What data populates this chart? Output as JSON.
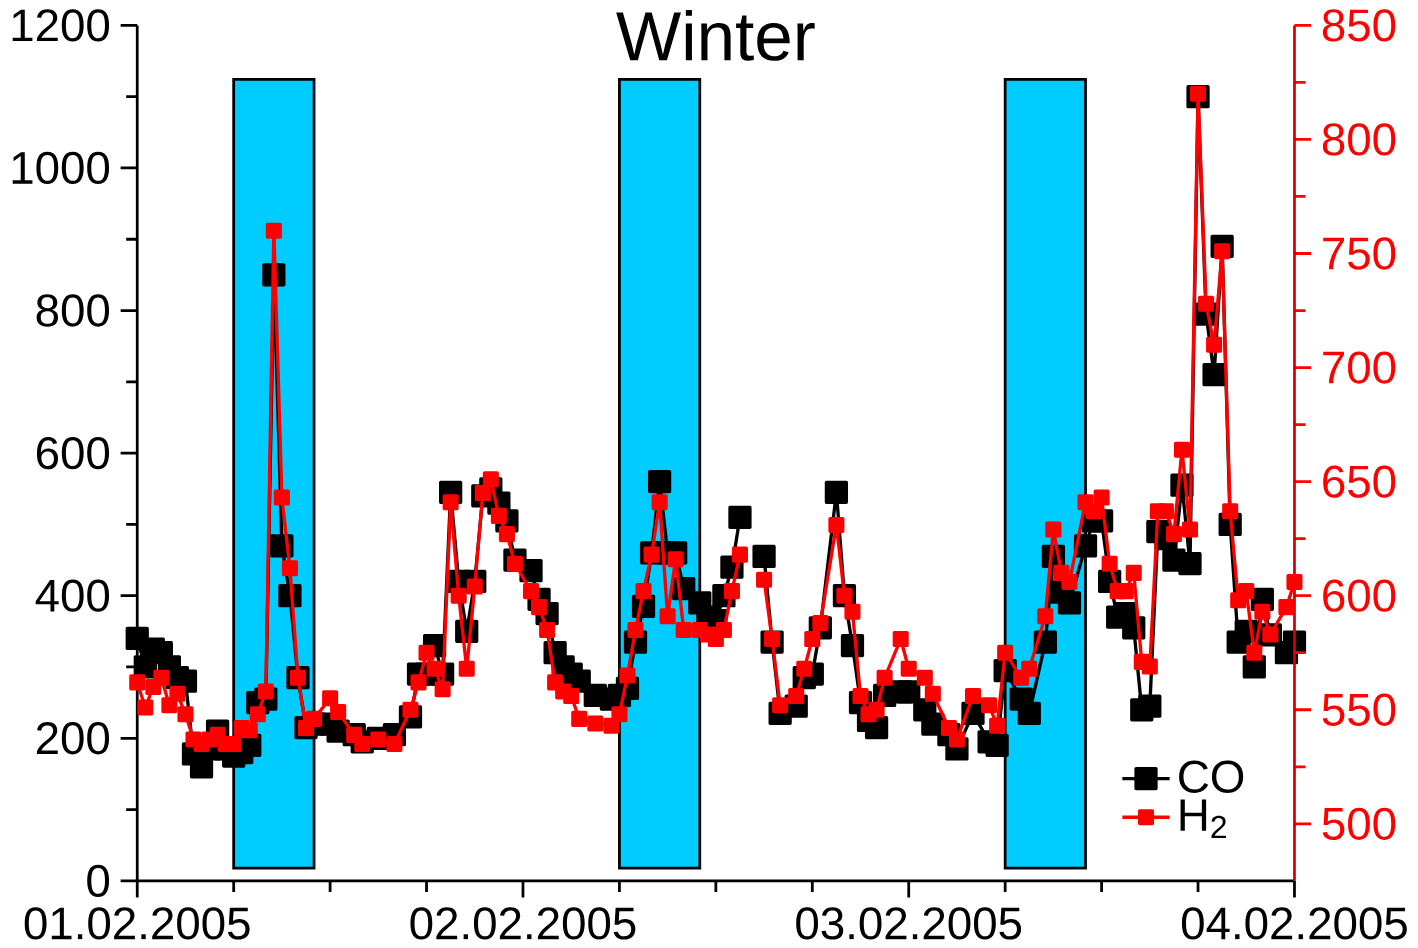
{
  "chart_data": {
    "type": "line",
    "title": "Winter",
    "x": [
      "2005-02-01T00:00",
      "2005-02-01T00:30",
      "2005-02-01T01:00",
      "2005-02-01T01:30",
      "2005-02-01T02:00",
      "2005-02-01T02:30",
      "2005-02-01T03:00",
      "2005-02-01T03:30",
      "2005-02-01T04:00",
      "2005-02-01T04:30",
      "2005-02-01T05:00",
      "2005-02-01T05:30",
      "2005-02-01T06:00",
      "2005-02-01T06:30",
      "2005-02-01T07:00",
      "2005-02-01T07:30",
      "2005-02-01T08:00",
      "2005-02-01T08:30",
      "2005-02-01T09:00",
      "2005-02-01T09:30",
      "2005-02-01T10:00",
      "2005-02-01T10:30",
      "2005-02-01T11:00",
      "2005-02-01T12:00",
      "2005-02-01T12:30",
      "2005-02-01T13:30",
      "2005-02-01T14:00",
      "2005-02-01T15:00",
      "2005-02-01T16:00",
      "2005-02-01T17:00",
      "2005-02-01T17:30",
      "2005-02-01T18:00",
      "2005-02-01T18:30",
      "2005-02-01T19:00",
      "2005-02-01T19:30",
      "2005-02-01T20:00",
      "2005-02-01T20:30",
      "2005-02-01T21:00",
      "2005-02-01T21:30",
      "2005-02-01T22:00",
      "2005-02-01T22:30",
      "2005-02-01T23:00",
      "2005-02-01T23:30",
      "2005-02-02T00:30",
      "2005-02-02T01:00",
      "2005-02-02T01:30",
      "2005-02-02T02:00",
      "2005-02-02T02:30",
      "2005-02-02T03:00",
      "2005-02-02T03:30",
      "2005-02-02T04:30",
      "2005-02-02T05:30",
      "2005-02-02T06:00",
      "2005-02-02T06:30",
      "2005-02-02T07:00",
      "2005-02-02T07:30",
      "2005-02-02T08:00",
      "2005-02-02T08:30",
      "2005-02-02T09:00",
      "2005-02-02T09:30",
      "2005-02-02T10:00",
      "2005-02-02T11:00",
      "2005-02-02T11:30",
      "2005-02-02T12:00",
      "2005-02-02T12:30",
      "2005-02-02T13:00",
      "2005-02-02T13:30",
      "2005-02-02T14:00",
      "2005-02-02T15:00",
      "2005-02-02T15:30",
      "2005-02-02T16:00",
      "2005-02-02T17:00",
      "2005-02-02T17:30",
      "2005-02-02T18:00",
      "2005-02-02T18:30",
      "2005-02-02T19:30",
      "2005-02-02T20:00",
      "2005-02-02T20:30",
      "2005-02-02T21:00",
      "2005-02-02T21:30",
      "2005-02-02T22:00",
      "2005-02-02T22:30",
      "2005-02-02T23:30",
      "2005-02-03T00:00",
      "2005-02-03T01:00",
      "2005-02-03T01:30",
      "2005-02-03T02:30",
      "2005-02-03T03:00",
      "2005-02-03T04:00",
      "2005-02-03T05:00",
      "2005-02-03T05:30",
      "2005-02-03T06:00",
      "2005-02-03T07:00",
      "2005-02-03T07:30",
      "2005-02-03T08:30",
      "2005-02-03T09:00",
      "2005-02-03T09:30",
      "2005-02-03T10:00",
      "2005-02-03T11:00",
      "2005-02-03T11:30",
      "2005-02-03T12:00",
      "2005-02-03T12:30",
      "2005-02-03T13:00",
      "2005-02-03T13:30",
      "2005-02-03T14:00",
      "2005-02-03T14:30",
      "2005-02-03T15:00",
      "2005-02-03T15:30",
      "2005-02-03T16:00",
      "2005-02-03T16:30",
      "2005-02-03T17:00",
      "2005-02-03T17:30",
      "2005-02-03T18:00",
      "2005-02-03T18:30",
      "2005-02-03T19:00",
      "2005-02-03T19:30",
      "2005-02-03T20:00",
      "2005-02-03T20:30",
      "2005-02-03T21:00",
      "2005-02-03T21:30",
      "2005-02-03T22:00",
      "2005-02-03T22:30",
      "2005-02-03T23:30",
      "2005-02-04T00:00"
    ],
    "series": [
      {
        "name": "CO",
        "color": "#000000",
        "values": [
          340,
          300,
          325,
          320,
          300,
          285,
          280,
          178,
          160,
          185,
          210,
          185,
          175,
          180,
          190,
          250,
          255,
          850,
          470,
          400,
          285,
          215,
          220,
          220,
          210,
          205,
          195,
          200,
          205,
          230,
          290,
          290,
          330,
          290,
          545,
          420,
          350,
          420,
          540,
          550,
          530,
          505,
          450,
          435,
          395,
          375,
          320,
          300,
          290,
          280,
          260,
          255,
          260,
          270,
          335,
          385,
          460,
          560,
          460,
          460,
          410,
          390,
          370,
          365,
          400,
          440,
          510,
          null,
          455,
          335,
          235,
          245,
          285,
          290,
          355,
          545,
          400,
          330,
          250,
          225,
          215,
          260,
          265,
          265,
          240,
          220,
          205,
          185,
          235,
          195,
          190,
          295,
          255,
          235,
          335,
          455,
          405,
          390,
          470,
          505,
          505,
          420,
          370,
          375,
          355,
          240,
          245,
          490,
          480,
          450,
          555,
          445,
          1100,
          795,
          710,
          890,
          500,
          335,
          350,
          300,
          395,
          345,
          320,
          335
        ]
      },
      {
        "name": "H$_{2}$",
        "color": "#ff0000",
        "axis": "y2",
        "values": [
          562,
          551,
          560,
          564,
          552,
          557,
          548,
          537,
          535,
          537,
          539,
          535,
          535,
          542,
          541,
          548,
          558,
          760,
          643,
          612,
          564,
          542,
          546,
          555,
          549,
          539,
          535,
          537,
          535,
          550,
          562,
          575,
          568,
          559,
          641,
          600,
          568,
          604,
          645,
          651,
          635,
          627,
          614,
          602,
          595,
          585,
          562,
          558,
          556,
          546,
          544,
          543,
          548,
          565,
          585,
          602,
          618,
          641,
          591,
          616,
          585,
          585,
          583,
          581,
          585,
          602,
          618,
          null,
          607,
          581,
          552,
          556,
          568,
          581,
          588,
          631,
          600,
          593,
          556,
          548,
          550,
          564,
          581,
          568,
          564,
          557,
          542,
          537,
          556,
          552,
          543,
          575,
          564,
          568,
          591,
          629,
          610,
          606,
          641,
          637,
          643,
          614,
          602,
          602,
          610,
          571,
          569,
          637,
          637,
          627,
          664,
          629,
          820,
          728,
          710,
          751,
          637,
          598,
          602,
          575,
          593,
          583,
          595,
          606
        ]
      }
    ],
    "xlim": [
      "2005-02-01T00:00",
      "2005-02-04T00:00"
    ],
    "xticks": [
      {
        "value": "2005-02-01T00:00",
        "label": "01.02.2005"
      },
      {
        "value": "2005-02-02T00:00",
        "label": "02.02.2005"
      },
      {
        "value": "2005-02-03T00:00",
        "label": "03.02.2005"
      },
      {
        "value": "2005-02-04T00:00",
        "label": "04.02.2005"
      }
    ],
    "ylim": [
      0,
      1200
    ],
    "yticks": [
      0,
      200,
      400,
      600,
      800,
      1000,
      1200
    ],
    "y2lim": [
      475,
      850
    ],
    "y2ticks": [
      500,
      550,
      600,
      650,
      700,
      750,
      800,
      850
    ],
    "bands": [
      {
        "axis": "x",
        "from": "2005-02-01T06:00",
        "to": "2005-02-01T11:00",
        "color": "#00ccff"
      },
      {
        "axis": "x",
        "from": "2005-02-02T06:00",
        "to": "2005-02-02T11:00",
        "color": "#00ccff"
      },
      {
        "axis": "x",
        "from": "2005-02-03T06:00",
        "to": "2005-02-03T11:00",
        "color": "#00ccff"
      }
    ],
    "legend": "bottom right",
    "marker": "square",
    "line_style": "solid",
    "grid": false
  }
}
